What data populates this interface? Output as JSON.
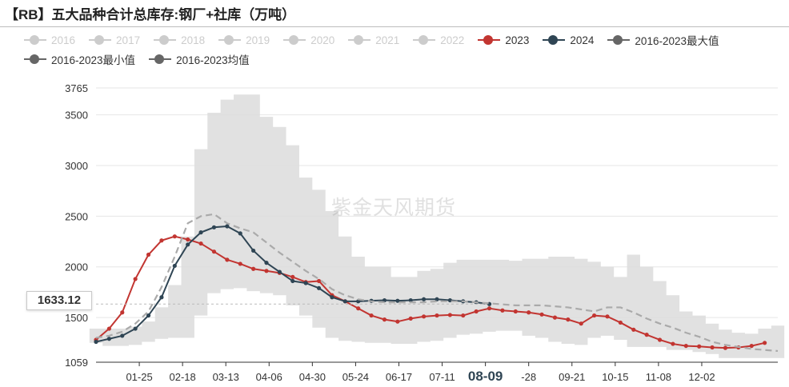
{
  "title": "【RB】五大品种合计总库存:钢厂+社库（万吨）",
  "watermark": "紫金天风期货",
  "pointer_value": "1633.12",
  "legend": [
    {
      "label": "2016",
      "color": "#cccccc",
      "active": false
    },
    {
      "label": "2017",
      "color": "#cccccc",
      "active": false
    },
    {
      "label": "2018",
      "color": "#cccccc",
      "active": false
    },
    {
      "label": "2019",
      "color": "#cccccc",
      "active": false
    },
    {
      "label": "2020",
      "color": "#cccccc",
      "active": false
    },
    {
      "label": "2021",
      "color": "#cccccc",
      "active": false
    },
    {
      "label": "2022",
      "color": "#cccccc",
      "active": false
    },
    {
      "label": "2023",
      "color": "#c23531",
      "active": true
    },
    {
      "label": "2024",
      "color": "#2f4554",
      "active": true
    },
    {
      "label": "2016-2023最大值",
      "color": "#666666",
      "active": true
    },
    {
      "label": "2016-2023最小值",
      "color": "#666666",
      "active": true
    },
    {
      "label": "2016-2023均值",
      "color": "#666666",
      "active": true
    }
  ],
  "chart_data": {
    "type": "line",
    "title": "【RB】五大品种合计总库存:钢厂+社库（万吨）",
    "ylim": [
      1059,
      3765
    ],
    "yticks": [
      1059,
      1500,
      2000,
      2500,
      3000,
      3500,
      3765
    ],
    "x_tick_labels": [
      "01-25",
      "02-18",
      "03-13",
      "04-06",
      "04-30",
      "05-24",
      "06-17",
      "07-11",
      "08-09",
      "-28",
      "09-21",
      "10-15",
      "11-08",
      "12-02"
    ],
    "x_tick_weeks": [
      3.3,
      6.6,
      9.9,
      13.2,
      16.5,
      19.8,
      23.1,
      26.4,
      29.7,
      33.0,
      36.3,
      39.6,
      42.9,
      46.2
    ],
    "highlight_tick": "08-09",
    "weeks": 52,
    "range_max": [
      1390,
      1390,
      1390,
      1410,
      1460,
      1600,
      1820,
      2300,
      3160,
      3520,
      3650,
      3700,
      3700,
      3480,
      3380,
      3200,
      2880,
      2760,
      2550,
      2300,
      2100,
      2000,
      2000,
      1900,
      1900,
      1960,
      1980,
      2040,
      2070,
      2070,
      2070,
      2070,
      2060,
      2080,
      2080,
      2100,
      2100,
      2080,
      2050,
      2000,
      1900,
      2120,
      2000,
      1860,
      1720,
      1560,
      1520,
      1440,
      1380,
      1350,
      1340,
      1390,
      1420
    ],
    "range_min": [
      1250,
      1220,
      1220,
      1230,
      1260,
      1290,
      1300,
      1300,
      1520,
      1740,
      1780,
      1790,
      1760,
      1740,
      1720,
      1620,
      1520,
      1400,
      1300,
      1270,
      1260,
      1250,
      1250,
      1240,
      1240,
      1260,
      1270,
      1300,
      1330,
      1340,
      1360,
      1370,
      1370,
      1320,
      1300,
      1260,
      1240,
      1230,
      1300,
      1320,
      1280,
      1210,
      1210,
      1210,
      1180,
      1180,
      1160,
      1140,
      1100,
      1100,
      1100,
      1100,
      1100
    ],
    "series": [
      {
        "name": "2023",
        "color": "#c23531",
        "dashed": false,
        "values": [
          1280,
          1390,
          1550,
          1880,
          2120,
          2260,
          2300,
          2270,
          2230,
          2150,
          2070,
          2030,
          1980,
          1960,
          1940,
          1900,
          1850,
          1860,
          1720,
          1660,
          1590,
          1520,
          1480,
          1460,
          1490,
          1510,
          1520,
          1525,
          1520,
          1560,
          1590,
          1570,
          1560,
          1550,
          1530,
          1500,
          1480,
          1440,
          1520,
          1510,
          1450,
          1380,
          1330,
          1280,
          1240,
          1220,
          1215,
          1205,
          1200,
          1205,
          1220,
          1250
        ]
      },
      {
        "name": "2024",
        "color": "#2f4554",
        "dashed": false,
        "values": [
          1260,
          1290,
          1320,
          1390,
          1520,
          1700,
          2010,
          2220,
          2340,
          2390,
          2400,
          2330,
          2160,
          2040,
          1950,
          1860,
          1840,
          1790,
          1700,
          1660,
          1660,
          1665,
          1670,
          1665,
          1670,
          1680,
          1680,
          1670,
          1660,
          1650,
          1633.12
        ]
      },
      {
        "name": "2016-2023均值",
        "color": "#aaaaaa",
        "dashed": true,
        "values": [
          1300,
          1320,
          1360,
          1440,
          1560,
          1800,
          2100,
          2430,
          2500,
          2520,
          2430,
          2380,
          2340,
          2240,
          2140,
          2050,
          1960,
          1880,
          1780,
          1720,
          1680,
          1660,
          1650,
          1650,
          1650,
          1650,
          1660,
          1660,
          1660,
          1650,
          1640,
          1630,
          1620,
          1620,
          1620,
          1610,
          1600,
          1580,
          1560,
          1600,
          1600,
          1550,
          1490,
          1440,
          1400,
          1350,
          1310,
          1260,
          1230,
          1210,
          1190,
          1180,
          1170
        ]
      }
    ]
  }
}
